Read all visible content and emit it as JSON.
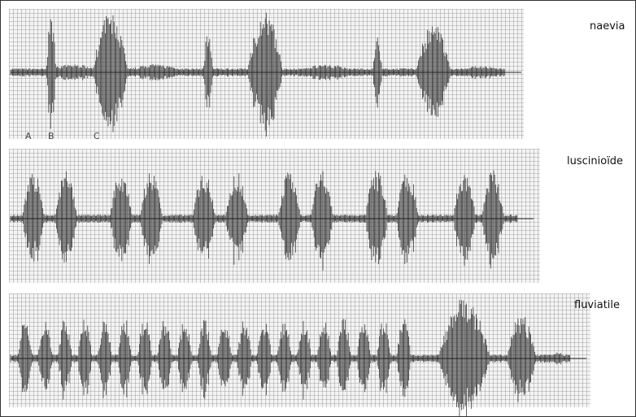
{
  "panels": [
    {
      "label": "naevia",
      "markers": [
        "A",
        "B",
        "C"
      ]
    },
    {
      "label": "luscinioïde"
    },
    {
      "label": "fluviatile"
    }
  ]
}
